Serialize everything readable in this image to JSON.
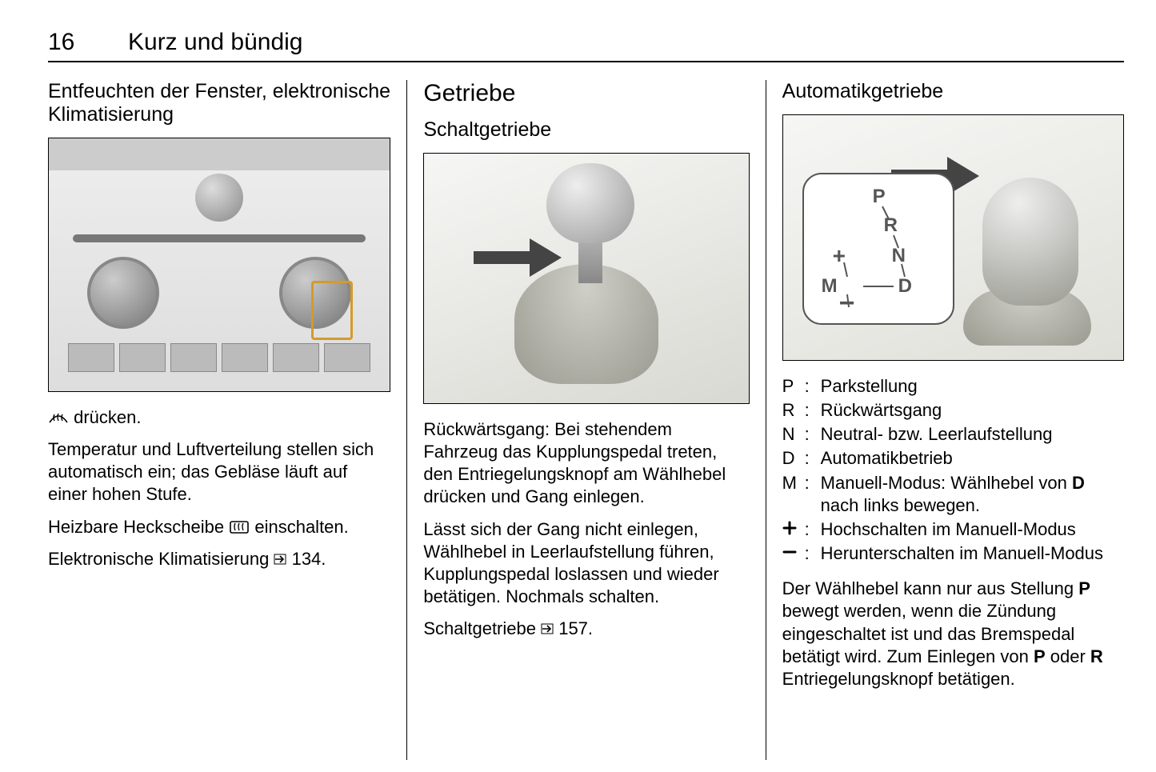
{
  "page_number": "16",
  "chapter_title": "Kurz und bündig",
  "col1": {
    "heading": "Entfeuchten der Fenster, elektronische Klimatisierung",
    "p1_after_icon": " drücken.",
    "p2": "Temperatur und Luftverteilung stellen sich automatisch ein; das Gebläse läuft auf einer hohen Stufe.",
    "p3_before_icon": "Heizbare Heckscheibe ",
    "p3_after_icon": " einschal­ten.",
    "p4_before_icon": "Elektronische Klimatisierung ",
    "p4_page": " 134."
  },
  "col2": {
    "section_title": "Getriebe",
    "heading": "Schaltgetriebe",
    "p1": "Rückwärtsgang: Bei stehendem Fahrzeug das Kupplungspedal treten, den Entriegelungsknopf am Wählhebel drücken und Gang einle­gen.",
    "p2": "Lässt sich der Gang nicht einlegen, Wählhebel in Leerlaufstellung führen, Kupplungspedal loslassen und wieder betätigen. Nochmals schalten.",
    "p3_before_icon": "Schaltgetriebe ",
    "p3_page": " 157."
  },
  "col3": {
    "heading": "Automatikgetriebe",
    "defs": [
      {
        "key": "P",
        "val": "Parkstellung"
      },
      {
        "key": "R",
        "val": "Rückwärtsgang"
      },
      {
        "key": "N",
        "val": "Neutral- bzw. Leerlaufstellung"
      },
      {
        "key": "D",
        "val": "Automatikbetrieb"
      },
      {
        "key": "M",
        "val_pre": "Manuell-Modus: Wählhebel von ",
        "val_bold": "D",
        "val_post": " nach links bewegen."
      },
      {
        "key": "＋",
        "val": "Hochschalten im Manuell-Modus"
      },
      {
        "key": "－",
        "val": "Herunterschalten im Manuell-Modus"
      }
    ],
    "p1_a": "Der Wählhebel kann nur aus Stellung ",
    "p1_b": "P",
    "p1_c": " bewegt werden, wenn die Zündung eingeschaltet ist und das Bremspedal betätigt wird. Zum Einlegen von ",
    "p1_d": "P",
    "p1_e": " oder ",
    "p1_f": "R",
    "p1_g": " Entriegelungsknopf betätigen."
  }
}
